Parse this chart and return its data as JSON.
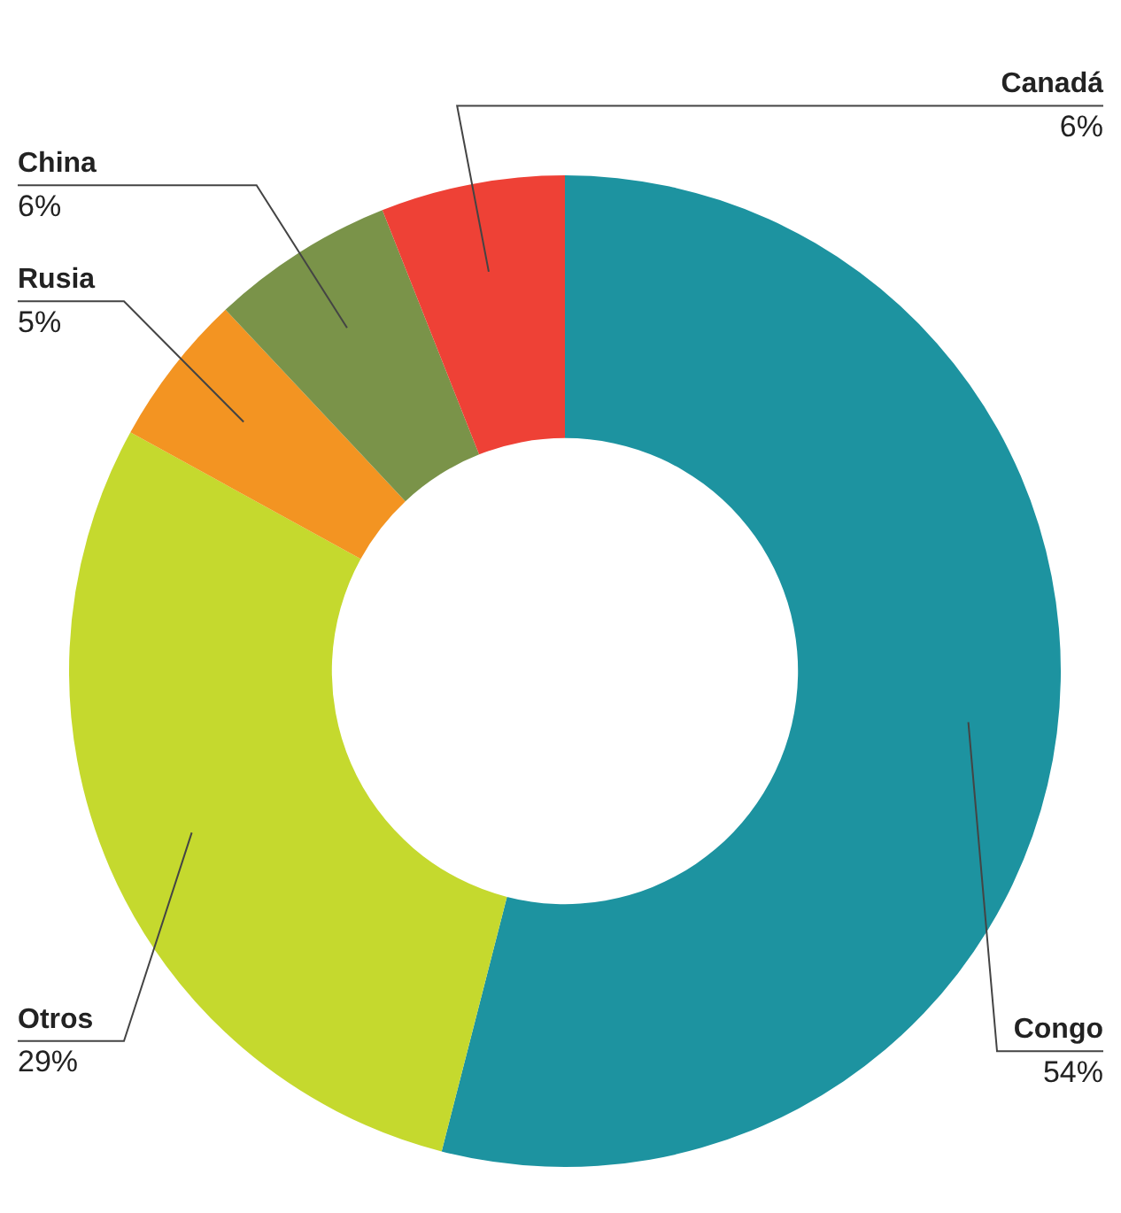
{
  "chart_data": {
    "type": "donut",
    "categories": [
      "Congo",
      "Otros",
      "Rusia",
      "China",
      "Canadá"
    ],
    "values": [
      54,
      29,
      5,
      6,
      6
    ],
    "value_labels": [
      "54%",
      "29%",
      "5%",
      "6%",
      "6%"
    ],
    "colors": [
      "#1d93a0",
      "#c5d92e",
      "#f39422",
      "#7a9349",
      "#ee4136"
    ],
    "legend": false
  }
}
